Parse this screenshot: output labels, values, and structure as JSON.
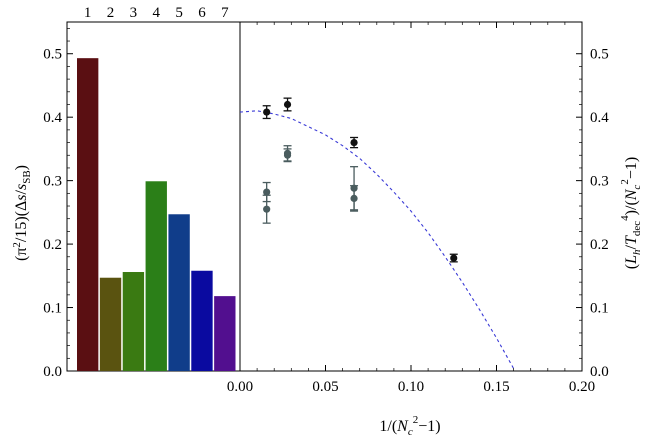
{
  "chart_data": [
    {
      "type": "bar",
      "categories": [
        "1",
        "2",
        "3",
        "4",
        "5",
        "6",
        "7"
      ],
      "values": [
        0.493,
        0.147,
        0.156,
        0.299,
        0.247,
        0.158,
        0.118
      ],
      "colors": [
        "#5a0f12",
        "#5a5310",
        "#3a7a12",
        "#2b7f18",
        "#103d8a",
        "#0a0aa0",
        "#520f8f"
      ],
      "ylim": [
        0,
        0.55
      ],
      "yticks": [
        "0.0",
        "0.1",
        "0.2",
        "0.3",
        "0.4",
        "0.5"
      ],
      "ylabel": {
        "prefix": "(π",
        "sup": "2",
        "mid": "/15)(Δ",
        "s": "s",
        "slash": "/",
        "s2": "s",
        "sub": "SB",
        "suffix": ")"
      }
    },
    {
      "type": "scatter",
      "xlim": [
        0,
        0.2
      ],
      "ylim": [
        0,
        0.55
      ],
      "xticks": [
        "0.00",
        "0.05",
        "0.10",
        "0.15",
        "0.20"
      ],
      "yticks": [
        "0.0",
        "0.1",
        "0.2",
        "0.3",
        "0.4",
        "0.5"
      ],
      "xlabel": {
        "prefix": "1/(",
        "N": "N",
        "sub": "c",
        "sup": "2",
        "suffix": "−1)"
      },
      "ylabel": {
        "open": "(",
        "L": "L",
        "h": "h",
        "slash": "/",
        "T": "T",
        "dec": "dec",
        "four": "4",
        "close": ")/(",
        "N": "N",
        "c": "c",
        "two": "2",
        "end": "−1)"
      },
      "series": [
        {
          "color": "#111111",
          "points": [
            {
              "x": 0.0156,
              "y": 0.408,
              "err": 0.01
            },
            {
              "x": 0.0278,
              "y": 0.42,
              "err": 0.01
            },
            {
              "x": 0.0667,
              "y": 0.36,
              "err": 0.008
            },
            {
              "x": 0.125,
              "y": 0.178,
              "err": 0.006
            }
          ]
        },
        {
          "color": "#4a5c5e",
          "points": [
            {
              "x": 0.0156,
              "y": 0.282,
              "err": 0.015
            },
            {
              "x": 0.0156,
              "y": 0.255,
              "err": 0.022
            },
            {
              "x": 0.0278,
              "y": 0.343,
              "err": 0.012
            },
            {
              "x": 0.0278,
              "y": 0.34,
              "err": 0.01
            },
            {
              "x": 0.0667,
              "y": 0.288,
              "err": 0.034
            },
            {
              "x": 0.0667,
              "y": 0.272,
              "err": 0.02
            }
          ]
        }
      ],
      "fit_curve": {
        "style": "dashed",
        "color": "#3a3ad6",
        "points": [
          [
            0.0,
            0.408
          ],
          [
            0.01,
            0.41
          ],
          [
            0.02,
            0.405
          ],
          [
            0.03,
            0.398
          ],
          [
            0.04,
            0.385
          ],
          [
            0.05,
            0.372
          ],
          [
            0.06,
            0.355
          ],
          [
            0.07,
            0.335
          ],
          [
            0.08,
            0.31
          ],
          [
            0.09,
            0.282
          ],
          [
            0.1,
            0.252
          ],
          [
            0.11,
            0.218
          ],
          [
            0.12,
            0.18
          ],
          [
            0.13,
            0.14
          ],
          [
            0.14,
            0.097
          ],
          [
            0.15,
            0.052
          ],
          [
            0.16,
            0.004
          ]
        ]
      }
    }
  ]
}
